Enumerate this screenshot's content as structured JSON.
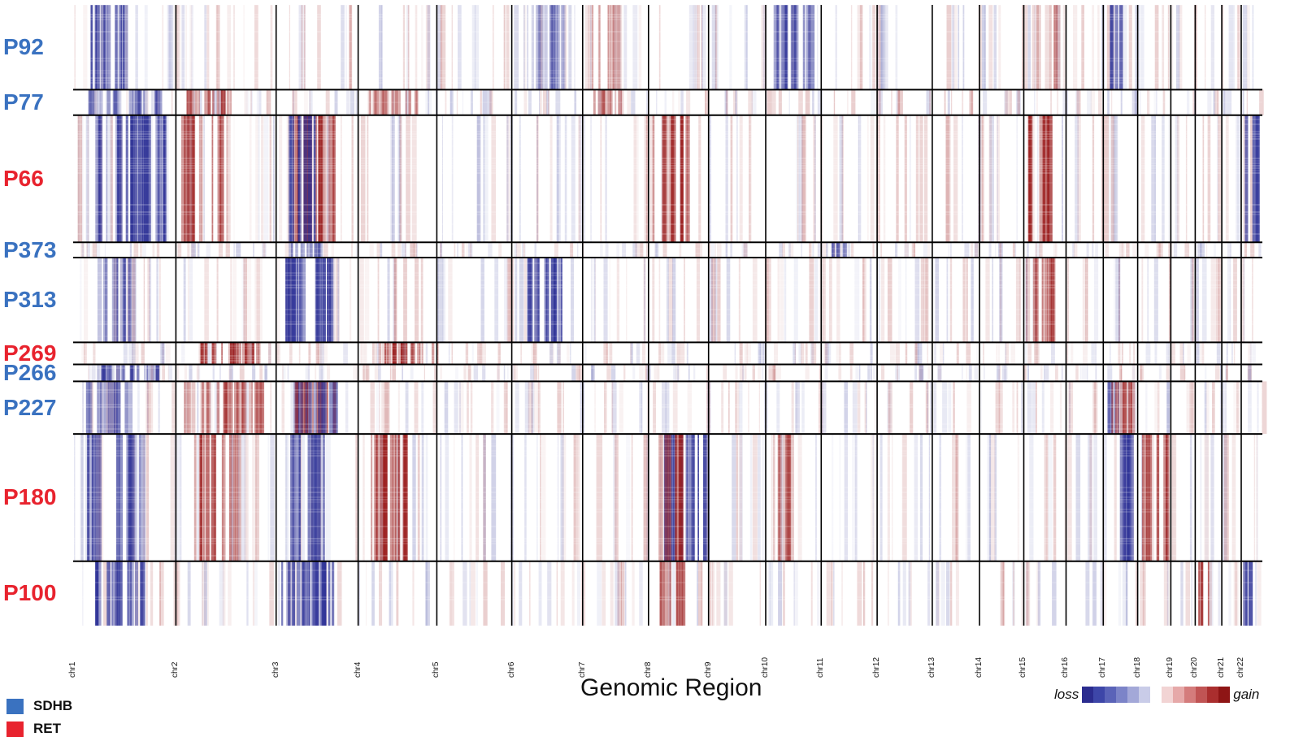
{
  "chart_data": {
    "type": "heatmap",
    "title": "",
    "xlabel": "Genomic Region",
    "ylabel": "",
    "chromosomes": [
      "chr1",
      "chr2",
      "chr3",
      "chr4",
      "chr5",
      "chr6",
      "chr7",
      "chr8",
      "chr9",
      "chr10",
      "chr11",
      "chr12",
      "chr13",
      "chr14",
      "chr15",
      "chr16",
      "chr17",
      "chr18",
      "chr19",
      "chr20",
      "chr21",
      "chr22"
    ],
    "chromosome_relative_sizes": [
      248,
      242,
      198,
      190,
      181,
      171,
      159,
      145,
      138,
      134,
      135,
      133,
      114,
      107,
      102,
      90,
      83,
      80,
      59,
      64,
      47,
      51
    ],
    "samples": [
      {
        "name": "P92",
        "subtype": "SDHB",
        "cells": 100
      },
      {
        "name": "P77",
        "subtype": "SDHB",
        "cells": 30
      },
      {
        "name": "P66",
        "subtype": "RET",
        "cells": 150
      },
      {
        "name": "P373",
        "subtype": "SDHB",
        "cells": 18
      },
      {
        "name": "P313",
        "subtype": "SDHB",
        "cells": 100
      },
      {
        "name": "P269",
        "subtype": "RET",
        "cells": 26
      },
      {
        "name": "P266",
        "subtype": "SDHB",
        "cells": 20
      },
      {
        "name": "P227",
        "subtype": "SDHB",
        "cells": 62
      },
      {
        "name": "P180",
        "subtype": "RET",
        "cells": 150
      },
      {
        "name": "P100",
        "subtype": "RET",
        "cells": 76
      }
    ],
    "cnv_events": [
      {
        "sample": "P92",
        "chr": "chr1",
        "state": "loss",
        "strength": 0.8
      },
      {
        "sample": "P92",
        "chr": "chr6",
        "state": "loss",
        "strength": 0.3
      },
      {
        "sample": "P92",
        "chr": "chr10",
        "state": "loss",
        "strength": 0.7
      },
      {
        "sample": "P92",
        "chr": "chr17",
        "state": "loss",
        "strength": 0.9
      },
      {
        "sample": "P92",
        "chr": "chr7",
        "state": "gain",
        "strength": 0.3
      },
      {
        "sample": "P92",
        "chr": "chr15",
        "state": "gain",
        "strength": 0.3
      },
      {
        "sample": "P77",
        "chr": "chr1",
        "state": "loss",
        "strength": 0.5
      },
      {
        "sample": "P77",
        "chr": "chr2",
        "state": "gain",
        "strength": 0.6
      },
      {
        "sample": "P77",
        "chr": "chr4",
        "state": "gain",
        "strength": 0.5
      },
      {
        "sample": "P77",
        "chr": "chr7",
        "state": "gain",
        "strength": 0.5
      },
      {
        "sample": "P66",
        "chr": "chr1",
        "state": "loss",
        "strength": 0.8
      },
      {
        "sample": "P66",
        "chr": "chr2",
        "state": "gain",
        "strength": 0.6
      },
      {
        "sample": "P66",
        "chr": "chr3",
        "state": "gain",
        "strength": 0.8
      },
      {
        "sample": "P66",
        "chr": "chr3",
        "state": "loss",
        "strength": 0.85
      },
      {
        "sample": "P66",
        "chr": "chr8",
        "state": "gain",
        "strength": 0.7
      },
      {
        "sample": "P66",
        "chr": "chr15",
        "state": "gain",
        "strength": 0.8
      },
      {
        "sample": "P66",
        "chr": "chr22",
        "state": "loss",
        "strength": 0.9
      },
      {
        "sample": "P373",
        "chr": "chr11",
        "state": "loss",
        "strength": 0.5
      },
      {
        "sample": "P373",
        "chr": "chr3",
        "state": "loss",
        "strength": 0.5
      },
      {
        "sample": "P313",
        "chr": "chr1",
        "state": "loss",
        "strength": 0.5
      },
      {
        "sample": "P313",
        "chr": "chr3",
        "state": "loss",
        "strength": 0.8
      },
      {
        "sample": "P313",
        "chr": "chr6",
        "state": "loss",
        "strength": 0.8
      },
      {
        "sample": "P313",
        "chr": "chr15",
        "state": "gain",
        "strength": 0.6
      },
      {
        "sample": "P269",
        "chr": "chr2",
        "state": "gain",
        "strength": 0.7
      },
      {
        "sample": "P269",
        "chr": "chr4",
        "state": "gain",
        "strength": 0.6
      },
      {
        "sample": "P266",
        "chr": "chr1",
        "state": "loss",
        "strength": 0.6
      },
      {
        "sample": "P227",
        "chr": "chr1",
        "state": "loss",
        "strength": 0.6
      },
      {
        "sample": "P227",
        "chr": "chr2",
        "state": "gain",
        "strength": 0.5
      },
      {
        "sample": "P227",
        "chr": "chr3",
        "state": "gain",
        "strength": 0.8
      },
      {
        "sample": "P227",
        "chr": "chr3",
        "state": "loss",
        "strength": 0.6
      },
      {
        "sample": "P227",
        "chr": "chr17",
        "state": "loss",
        "strength": 0.8
      },
      {
        "sample": "P227",
        "chr": "chr17",
        "state": "gain",
        "strength": 0.7
      },
      {
        "sample": "P180",
        "chr": "chr1",
        "state": "loss",
        "strength": 0.6
      },
      {
        "sample": "P180",
        "chr": "chr2",
        "state": "gain",
        "strength": 0.6
      },
      {
        "sample": "P180",
        "chr": "chr3",
        "state": "loss",
        "strength": 0.85
      },
      {
        "sample": "P180",
        "chr": "chr4",
        "state": "gain",
        "strength": 0.8
      },
      {
        "sample": "P180",
        "chr": "chr8",
        "state": "loss",
        "strength": 0.8
      },
      {
        "sample": "P180",
        "chr": "chr8",
        "state": "gain",
        "strength": 0.6
      },
      {
        "sample": "P180",
        "chr": "chr10",
        "state": "gain",
        "strength": 0.5
      },
      {
        "sample": "P180",
        "chr": "chr17",
        "state": "loss",
        "strength": 0.85
      },
      {
        "sample": "P180",
        "chr": "chr18",
        "state": "gain",
        "strength": 0.6
      },
      {
        "sample": "P100",
        "chr": "chr1",
        "state": "loss",
        "strength": 0.8
      },
      {
        "sample": "P100",
        "chr": "chr3",
        "state": "loss",
        "strength": 0.8
      },
      {
        "sample": "P100",
        "chr": "chr8",
        "state": "gain",
        "strength": 0.6
      },
      {
        "sample": "P100",
        "chr": "chr20",
        "state": "gain",
        "strength": 0.85
      },
      {
        "sample": "P100",
        "chr": "chr22",
        "state": "loss",
        "strength": 0.85
      }
    ],
    "color_scale": {
      "low_label": "loss",
      "high_label": "gain",
      "colors": [
        "#2b2c8f",
        "#3d46a8",
        "#5a63b8",
        "#7c84c8",
        "#a3a8d8",
        "#c9cce8",
        "#ffffff",
        "#f2d4d4",
        "#e6a9a9",
        "#d47c7c",
        "#c05454",
        "#aa2e2e",
        "#8e1515"
      ]
    }
  },
  "subtype_legend": [
    {
      "label": "SDHB",
      "color": "#3a72c0"
    },
    {
      "label": "RET",
      "color": "#e8232e"
    }
  ],
  "colors": {
    "sdhb": "#3a72c0",
    "ret": "#e8232e",
    "loss": "#2f3397",
    "gain": "#9a1b1b"
  }
}
